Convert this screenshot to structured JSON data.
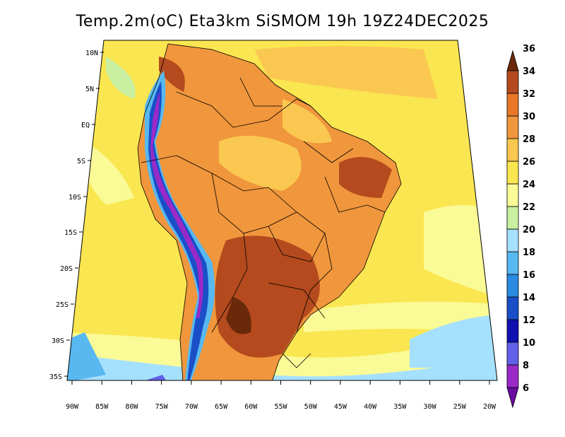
{
  "title": "Temp.2m(oC) Eta3km SiSMOM 19h 19Z24DEC2025",
  "map": {
    "lat_labels": [
      "10N",
      "5N",
      "EQ",
      "5S",
      "10S",
      "15S",
      "20S",
      "25S",
      "30S",
      "35S"
    ],
    "lon_labels": [
      "90W",
      "85W",
      "80W",
      "75W",
      "70W",
      "65W",
      "60W",
      "55W",
      "50W",
      "45W",
      "40W",
      "35W",
      "30W",
      "25W",
      "20W"
    ]
  },
  "colorbar": {
    "labels": [
      "6",
      "8",
      "10",
      "12",
      "14",
      "16",
      "18",
      "20",
      "22",
      "24",
      "26",
      "28",
      "30",
      "32",
      "34",
      "36"
    ],
    "colors": [
      "#6a0aa0",
      "#9a2ac8",
      "#6060e8",
      "#1010b0",
      "#1a4fc8",
      "#2a8ae0",
      "#58b8f0",
      "#a6e0ff",
      "#c8f0a0",
      "#fafa96",
      "#fae650",
      "#fac850",
      "#f0963c",
      "#e87828",
      "#b44a1e",
      "#6a2a0a"
    ]
  }
}
